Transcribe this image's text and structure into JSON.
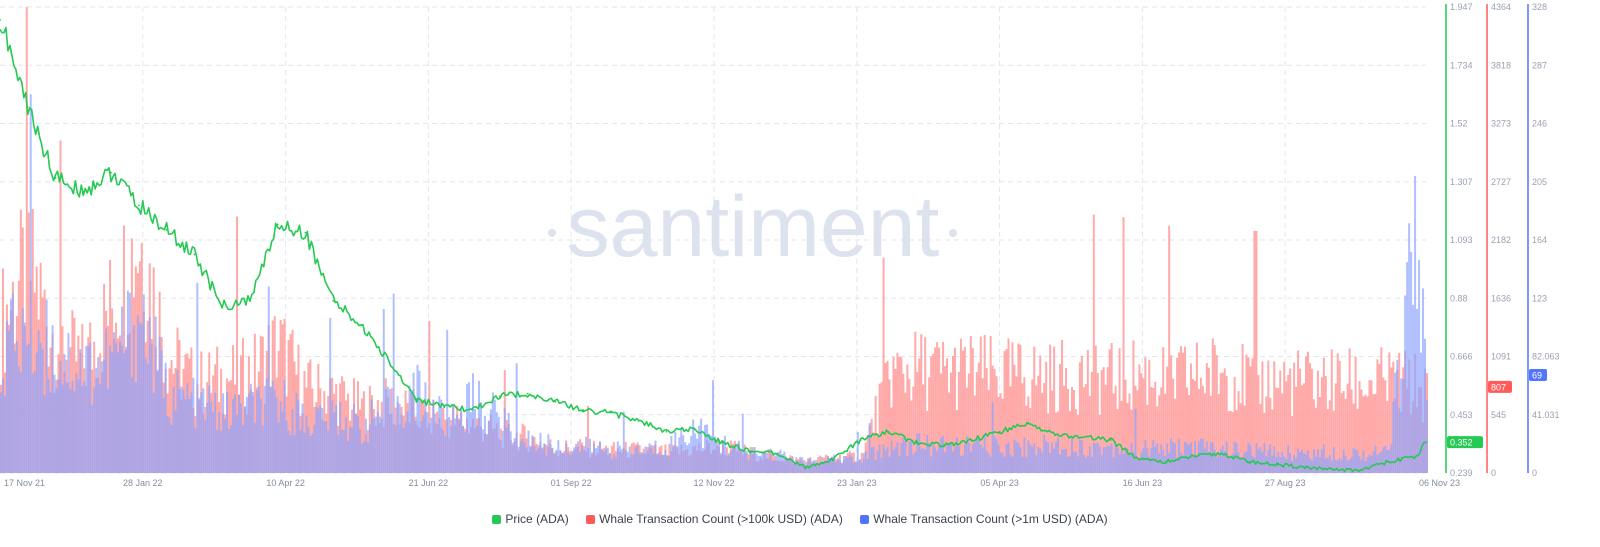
{
  "chart_data": {
    "type": "line",
    "watermark": "santiment",
    "x_ticks": [
      "17 Nov 21",
      "28 Jan 22",
      "10 Apr 22",
      "21 Jun 22",
      "01 Sep 22",
      "12 Nov 22",
      "23 Jan 23",
      "05 Apr 23",
      "16 Jun 23",
      "27 Aug 23",
      "06 Nov 23"
    ],
    "x": [
      "2021-11-17",
      "2021-12-01",
      "2021-12-15",
      "2021-12-29",
      "2022-01-12",
      "2022-01-26",
      "2022-02-09",
      "2022-02-23",
      "2022-03-09",
      "2022-03-23",
      "2022-04-06",
      "2022-04-20",
      "2022-05-04",
      "2022-05-18",
      "2022-06-01",
      "2022-06-15",
      "2022-06-29",
      "2022-07-13",
      "2022-07-27",
      "2022-08-10",
      "2022-08-24",
      "2022-09-07",
      "2022-09-21",
      "2022-10-05",
      "2022-10-19",
      "2022-11-02",
      "2022-11-16",
      "2022-11-30",
      "2022-12-14",
      "2022-12-28",
      "2023-01-11",
      "2023-01-25",
      "2023-02-08",
      "2023-02-22",
      "2023-03-08",
      "2023-03-22",
      "2023-04-05",
      "2023-04-19",
      "2023-05-03",
      "2023-05-17",
      "2023-05-31",
      "2023-06-14",
      "2023-06-28",
      "2023-07-12",
      "2023-07-26",
      "2023-08-09",
      "2023-08-23",
      "2023-09-06",
      "2023-09-20",
      "2023-10-04",
      "2023-10-18",
      "2023-11-01",
      "2023-11-06"
    ],
    "series": [
      {
        "name": "Price (ADA)",
        "axis": "price",
        "color": "#26c953",
        "mark": "line",
        "last_value_label": "0.352",
        "values": [
          1.9,
          1.58,
          1.32,
          1.27,
          1.34,
          1.22,
          1.13,
          1.04,
          0.85,
          0.87,
          1.15,
          1.12,
          0.87,
          0.78,
          0.65,
          0.51,
          0.48,
          0.47,
          0.52,
          0.53,
          0.5,
          0.47,
          0.46,
          0.43,
          0.39,
          0.4,
          0.35,
          0.32,
          0.31,
          0.26,
          0.29,
          0.36,
          0.39,
          0.35,
          0.34,
          0.36,
          0.39,
          0.42,
          0.38,
          0.37,
          0.36,
          0.29,
          0.28,
          0.3,
          0.31,
          0.28,
          0.27,
          0.26,
          0.25,
          0.25,
          0.28,
          0.3,
          0.352
        ]
      },
      {
        "name": "Whale Transaction Count (>100k USD) (ADA)",
        "axis": "whale100k",
        "color": "#ff5b5b",
        "mark": "bars",
        "last_value_label": "807",
        "values": [
          1500,
          2100,
          1300,
          1100,
          1700,
          2400,
          1200,
          900,
          950,
          1000,
          1300,
          850,
          800,
          650,
          700,
          600,
          550,
          500,
          400,
          350,
          250,
          260,
          230,
          230,
          210,
          240,
          270,
          200,
          160,
          120,
          150,
          170,
          1000,
          1050,
          1020,
          1030,
          980,
          990,
          960,
          1000,
          950,
          1010,
          940,
          980,
          1040,
          920,
          930,
          910,
          920,
          900,
          920,
          880,
          807
        ]
      },
      {
        "name": "Whale Transaction Count (>1m USD) (ADA)",
        "axis": "whale1m",
        "color": "#5275ff",
        "mark": "bars",
        "last_value_label": "69",
        "values": [
          95,
          110,
          90,
          80,
          85,
          120,
          60,
          55,
          45,
          50,
          55,
          40,
          45,
          35,
          50,
          60,
          40,
          55,
          40,
          25,
          20,
          20,
          18,
          17,
          20,
          35,
          22,
          15,
          14,
          8,
          10,
          12,
          20,
          22,
          20,
          21,
          20,
          20,
          22,
          19,
          20,
          18,
          19,
          20,
          18,
          17,
          16,
          15,
          16,
          15,
          16,
          200,
          69
        ]
      }
    ],
    "axes": {
      "price": {
        "color": "#26c953",
        "ylim": [
          0.239,
          1.947
        ],
        "ticks": [
          "1.947",
          "1.734",
          "1.52",
          "1.307",
          "1.093",
          "0.88",
          "0.666",
          "0.453",
          "0.239"
        ]
      },
      "whale100k": {
        "color": "#ff5b5b",
        "ylim": [
          0,
          4364
        ],
        "ticks": [
          "4364",
          "3818",
          "3273",
          "2727",
          "2182",
          "1636",
          "1091",
          "545",
          "0"
        ]
      },
      "whale1m": {
        "color": "#5275ff",
        "ylim": [
          0,
          328
        ],
        "ticks": [
          "328",
          "287",
          "246",
          "205",
          "164",
          "123",
          "82.063",
          "41.031",
          "0"
        ]
      }
    },
    "grid": true,
    "legend_position": "bottom-center"
  }
}
